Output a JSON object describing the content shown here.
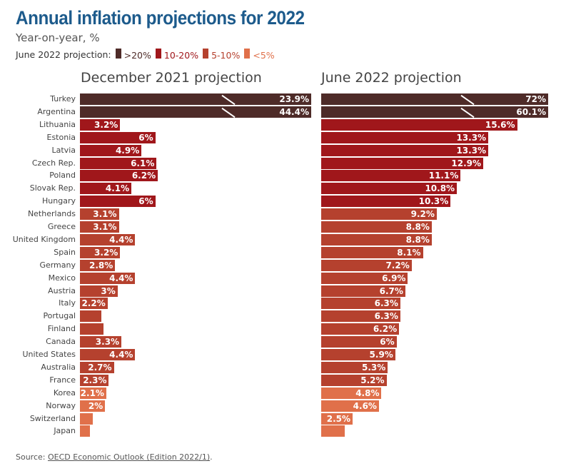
{
  "title": "Annual inflation projections for 2022",
  "subtitle": "Year-on-year, %",
  "legend": {
    "label": "June 2022 projection:",
    "items": [
      {
        "name": ">20%",
        "color": "#4e2b28"
      },
      {
        "name": "10-20%",
        "color": "#a0171b"
      },
      {
        "name": "5-10%",
        "color": "#b5412e"
      },
      {
        "name": "<5%",
        "color": "#e0704a"
      }
    ]
  },
  "source": {
    "prefix": "Source: ",
    "link": "OECD Economic Outlook (Edition 2022/1)",
    "suffix": "."
  },
  "chart_data": {
    "type": "bar",
    "orientation": "horizontal",
    "categories": [
      "Turkey",
      "Argentina",
      "Lithuania",
      "Estonia",
      "Latvia",
      "Czech Rep.",
      "Poland",
      "Slovak Rep.",
      "Hungary",
      "Netherlands",
      "Greece",
      "United Kingdom",
      "Spain",
      "Germany",
      "Mexico",
      "Austria",
      "Italy",
      "Portugal",
      "Finland",
      "Canada",
      "United States",
      "Australia",
      "France",
      "Korea",
      "Norway",
      "Switzerland",
      "Japan"
    ],
    "series": [
      {
        "name": "December 2021 projection",
        "values": [
          23.9,
          44.4,
          3.2,
          6,
          4.9,
          6.1,
          6.2,
          4.1,
          6,
          3.1,
          3.1,
          4.4,
          3.2,
          2.8,
          4.4,
          3,
          2.2,
          1.7,
          1.9,
          3.3,
          4.4,
          2.7,
          2.3,
          2.1,
          2,
          1.0,
          0.8
        ],
        "labels": [
          "23.9%",
          "44.4%",
          "3.2%",
          "6%",
          "4.9%",
          "6.1%",
          "6.2%",
          "4.1%",
          "6%",
          "3.1%",
          "3.1%",
          "4.4%",
          "3.2%",
          "2.8%",
          "4.4%",
          "3%",
          "2.2%",
          "",
          "",
          "3.3%",
          "4.4%",
          "2.7%",
          "2.3%",
          "2.1%",
          "2%",
          "",
          ""
        ]
      },
      {
        "name": "June 2022 projection",
        "values": [
          72,
          60.1,
          15.6,
          13.3,
          13.3,
          12.9,
          11.1,
          10.8,
          10.3,
          9.2,
          8.8,
          8.8,
          8.1,
          7.2,
          6.9,
          6.7,
          6.3,
          6.3,
          6.2,
          6,
          5.9,
          5.3,
          5.2,
          4.8,
          4.6,
          2.5,
          1.9
        ],
        "labels": [
          "72%",
          "60.1%",
          "15.6%",
          "13.3%",
          "13.3%",
          "12.9%",
          "11.1%",
          "10.8%",
          "10.3%",
          "9.2%",
          "8.8%",
          "8.8%",
          "8.1%",
          "7.2%",
          "6.9%",
          "6.7%",
          "6.3%",
          "6.3%",
          "6.2%",
          "6%",
          "5.9%",
          "5.3%",
          "5.2%",
          "4.8%",
          "4.6%",
          "2.5%",
          ""
        ]
      }
    ],
    "color_by": "June 2022 projection category",
    "axis_break_above": 18
  }
}
